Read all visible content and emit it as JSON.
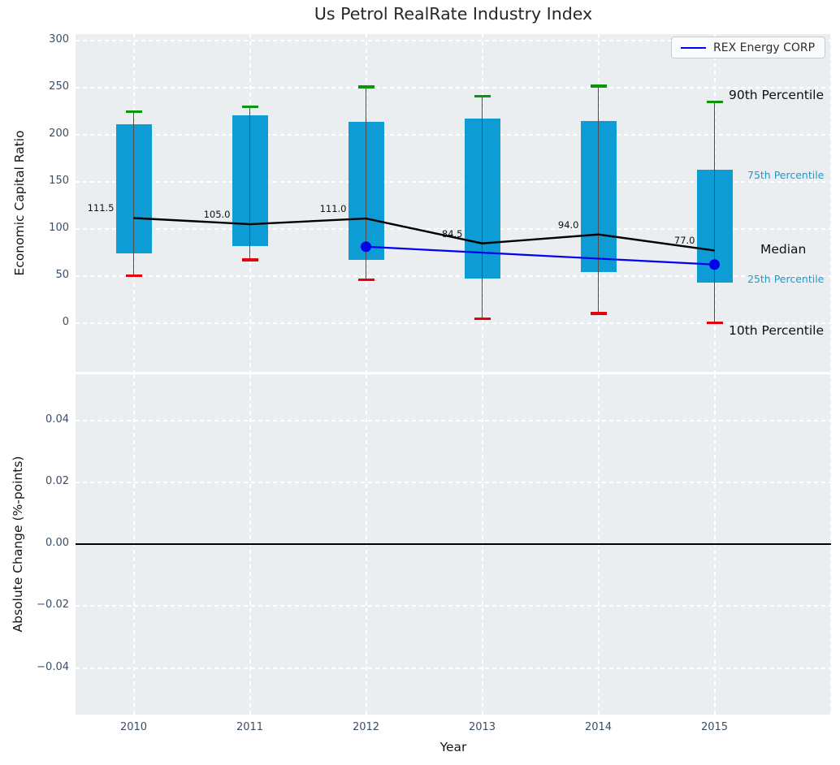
{
  "title": "Us Petrol RealRate Industry Index",
  "legend": {
    "label": "REX Energy CORP"
  },
  "axes": {
    "top": {
      "ylabel": "Economic Capital Ratio",
      "ytick_labels": [
        "300",
        "250",
        "200",
        "150",
        "100",
        "50",
        "0"
      ],
      "ytick_values": [
        300,
        250,
        200,
        150,
        100,
        50,
        0
      ]
    },
    "bottom": {
      "ylabel": "Absolute Change (%-points)",
      "ytick_labels": [
        "0.04",
        "0.02",
        "0.00",
        "−0.02",
        "−0.04"
      ],
      "ytick_values": [
        0.04,
        0.02,
        0.0,
        -0.02,
        -0.04
      ]
    },
    "x": {
      "label": "Year",
      "ticks": [
        "2010",
        "2011",
        "2012",
        "2013",
        "2014",
        "2015"
      ]
    }
  },
  "right_labels": {
    "p90": "90th Percentile",
    "p75": "75th Percentile",
    "median": "Median",
    "p25": "25th Percentile",
    "p10": "10th Percentile"
  },
  "colors": {
    "box_fill": "#0d9cd4",
    "cap_90th": "#0a960a",
    "cap_10th": "#e8000b",
    "median": "#000000",
    "rex_line": "#0000ee",
    "panel_background": "#eaeef1",
    "gridline": "#ffffff",
    "tick_text": "#3c4e63",
    "percentile_label_cyan": "#189bd3"
  },
  "chart_data": [
    {
      "type": "boxplot-timeseries",
      "title": "Us Petrol RealRate Industry Index",
      "xlabel": "Year",
      "ylabel": "Economic Capital Ratio",
      "ylim": [
        -58,
        307
      ],
      "grid": true,
      "legend_position": "upper right",
      "categories": [
        "2010",
        "2011",
        "2012",
        "2013",
        "2014",
        "2015"
      ],
      "percentiles": {
        "p90": [
          225,
          230,
          251,
          241,
          252,
          235
        ],
        "p75": [
          211,
          221,
          214,
          217,
          215,
          163
        ],
        "median": [
          111.5,
          105.0,
          111.0,
          84.5,
          94.0,
          77.0
        ],
        "p25": [
          74,
          82,
          67,
          47,
          54,
          43
        ],
        "p10": [
          50,
          67,
          46,
          4,
          10,
          0
        ]
      },
      "median_labels": [
        "111.5",
        "105.0",
        "111.0",
        "84.5",
        "94.0",
        "77.0"
      ],
      "series": [
        {
          "name": "REX Energy CORP",
          "x": [
            "2012",
            "2015"
          ],
          "values": [
            81,
            62
          ],
          "color": "#0000ee",
          "marker": "circle"
        }
      ]
    },
    {
      "type": "line",
      "ylabel": "Absolute Change (%-points)",
      "ylim": [
        -0.055,
        0.055
      ],
      "yticks": [
        0.04,
        0.02,
        0.0,
        -0.02,
        -0.04
      ],
      "zero_line": 0.0,
      "grid": true,
      "series": []
    }
  ]
}
